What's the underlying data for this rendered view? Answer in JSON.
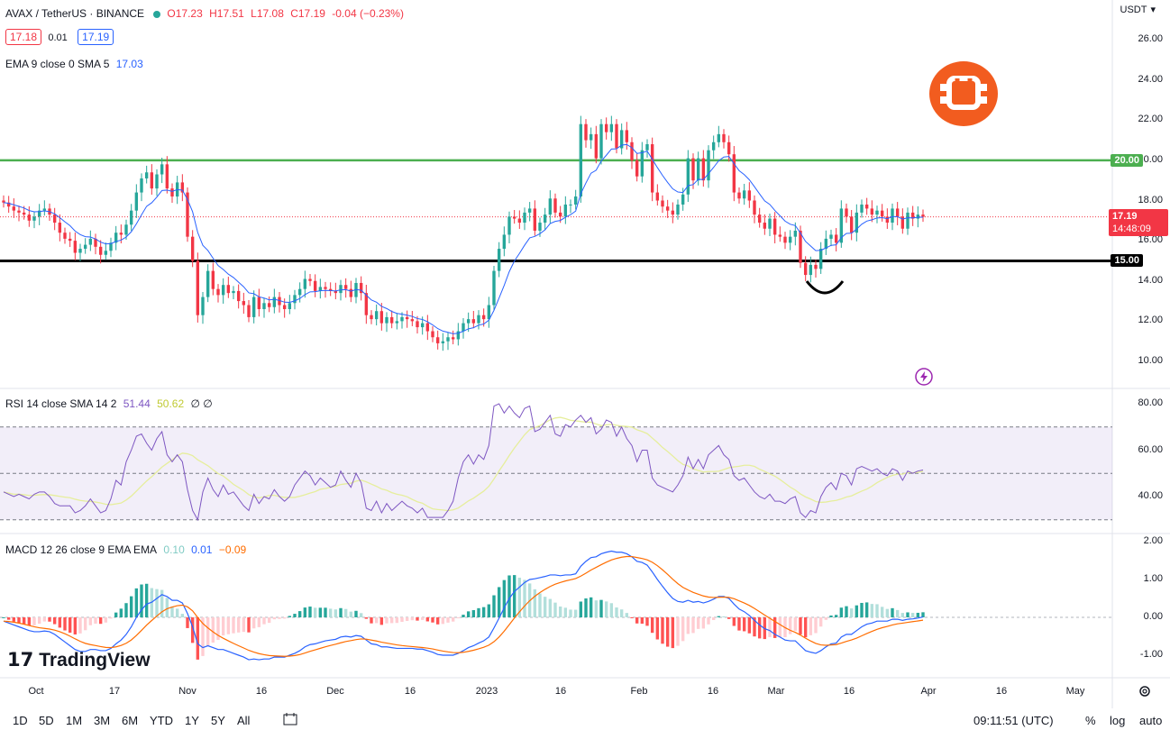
{
  "header": {
    "symbol": "AVAX / TetherUS · BINANCE",
    "open": "O17.23",
    "high": "H17.51",
    "low": "L17.08",
    "close": "C17.19",
    "change": "-0.04 (−0.23%)",
    "bid": "17.18",
    "spread": "0.01",
    "ask": "17.19",
    "ema_label": "EMA 9 close 0 SMA 5",
    "ema_value": "17.03",
    "currency": "USDT",
    "currency_arrow": "▾"
  },
  "rsi_header": {
    "label": "RSI 14 close SMA 14 2",
    "v1": "51.44",
    "v2": "50.62",
    "v3": "∅ ∅"
  },
  "macd_header": {
    "label": "MACD 12 26 close 9 EMA EMA",
    "v1": "0.10",
    "v2": "0.01",
    "v3": "−0.09"
  },
  "price_axis": [
    "26.00",
    "24.00",
    "22.00",
    "20.00",
    "18.00",
    "16.00",
    "14.00",
    "12.00",
    "10.00"
  ],
  "rsi_axis": [
    "80.00",
    "60.00",
    "40.00"
  ],
  "macd_axis": [
    "2.00",
    "1.00",
    "0.00",
    "-1.00"
  ],
  "levels": {
    "resistance": "20.00",
    "support": "15.00"
  },
  "last_price": {
    "price": "17.19",
    "countdown": "14:48:09"
  },
  "x_axis": [
    "Oct",
    "17",
    "Nov",
    "16",
    "Dec",
    "16",
    "2023",
    "16",
    "Feb",
    "16",
    "Mar",
    "16",
    "Apr",
    "16",
    "May"
  ],
  "bottom": {
    "timeframes": [
      "1D",
      "5D",
      "1M",
      "3M",
      "6M",
      "YTD",
      "1Y",
      "5Y",
      "All"
    ],
    "clock": "09:11:51 (UTC)",
    "percent": "%",
    "log": "log",
    "auto": "auto"
  },
  "brand": "TradingView",
  "colors": {
    "up": "#26a69a",
    "down": "#f23645",
    "resistance": "#4caf50",
    "support": "#000000",
    "ema": "#2962ff",
    "rsi": "#7e57c2",
    "rsi_sma": "#e6ee9c",
    "macd": "#2962ff",
    "signal": "#ff6d00"
  },
  "chart_data": {
    "type": "candlestick",
    "title": "AVAX / TetherUS · BINANCE",
    "ylim": [
      9.5,
      27
    ],
    "close": [
      17.9,
      17.7,
      17.5,
      17.4,
      17.3,
      17.0,
      17.2,
      17.5,
      17.6,
      17.3,
      16.9,
      16.4,
      16.1,
      16.0,
      15.4,
      15.6,
      15.8,
      16.1,
      15.7,
      15.3,
      15.5,
      15.9,
      16.4,
      16.3,
      16.8,
      17.5,
      18.4,
      19.1,
      19.4,
      18.6,
      19.3,
      19.8,
      18.6,
      18.2,
      18.9,
      18.4,
      16.2,
      15.0,
      12.3,
      13.2,
      14.5,
      13.6,
      13.3,
      13.8,
      13.4,
      13.5,
      13.0,
      12.8,
      12.2,
      13.2,
      12.6,
      12.9,
      12.7,
      13.2,
      12.8,
      12.6,
      12.9,
      13.3,
      13.6,
      14.1,
      14.0,
      13.5,
      13.7,
      13.6,
      13.5,
      13.4,
      13.8,
      13.6,
      13.2,
      13.9,
      13.4,
      12.3,
      12.1,
      12.5,
      11.9,
      12.2,
      11.9,
      12.0,
      12.2,
      12.1,
      12.0,
      11.7,
      11.9,
      11.5,
      11.2,
      10.9,
      11.0,
      11.2,
      11.1,
      11.5,
      11.9,
      12.1,
      11.9,
      12.3,
      12.1,
      12.8,
      14.5,
      15.6,
      16.3,
      17.2,
      17.1,
      16.9,
      17.4,
      17.6,
      16.5,
      16.9,
      17.3,
      18.1,
      17.4,
      17.2,
      17.8,
      17.8,
      18.2,
      21.8,
      21.0,
      21.3,
      20.1,
      21.8,
      21.4,
      21.8,
      20.6,
      21.5,
      20.9,
      20.0,
      19.2,
      20.5,
      20.8,
      18.4,
      18.0,
      17.7,
      17.5,
      17.3,
      17.8,
      18.3,
      20.1,
      19.0,
      20.1,
      19.0,
      20.5,
      20.9,
      21.3,
      20.9,
      20.3,
      18.4,
      18.1,
      18.5,
      18.0,
      17.3,
      16.9,
      16.6,
      17.1,
      16.3,
      16.2,
      15.9,
      16.2,
      16.5,
      14.9,
      14.3,
      14.8,
      14.6,
      15.6,
      16.1,
      16.3,
      15.9,
      17.6,
      17.2,
      16.4,
      17.4,
      17.8,
      17.6,
      17.3,
      17.5,
      17.2,
      16.9,
      17.6,
      17.2,
      16.6,
      17.4,
      17.1,
      17.3,
      17.19
    ],
    "rsi": [
      42,
      41,
      40,
      41,
      40,
      39,
      41,
      42,
      42,
      40,
      37,
      36,
      36,
      36,
      33,
      34,
      36,
      39,
      36,
      33,
      34,
      39,
      47,
      45,
      55,
      60,
      66,
      67,
      63,
      60,
      65,
      68,
      58,
      55,
      58,
      55,
      43,
      34,
      30,
      42,
      48,
      43,
      40,
      45,
      41,
      42,
      39,
      36,
      34,
      41,
      37,
      40,
      39,
      43,
      40,
      38,
      40,
      45,
      48,
      51,
      49,
      45,
      48,
      46,
      44,
      45,
      51,
      47,
      44,
      50,
      46,
      35,
      34,
      38,
      33,
      37,
      34,
      36,
      38,
      36,
      35,
      33,
      35,
      31,
      31,
      31,
      31,
      34,
      38,
      48,
      55,
      58,
      54,
      58,
      56,
      62,
      79,
      80,
      76,
      79,
      76,
      74,
      78,
      79,
      68,
      69,
      72,
      75,
      67,
      66,
      71,
      70,
      73,
      75,
      72,
      74,
      67,
      69,
      73,
      72,
      66,
      70,
      65,
      62,
      55,
      60,
      60,
      48,
      45,
      44,
      43,
      42,
      45,
      49,
      57,
      52,
      56,
      52,
      58,
      60,
      62,
      58,
      56,
      49,
      47,
      48,
      45,
      42,
      40,
      39,
      41,
      38,
      38,
      37,
      39,
      40,
      33,
      31,
      34,
      33,
      40,
      44,
      46,
      43,
      50,
      49,
      45,
      52,
      53,
      52,
      51,
      52,
      50,
      49,
      52,
      51,
      47,
      51,
      50,
      51,
      51.44
    ],
    "macd": [
      -0.1,
      -0.15,
      -0.2,
      -0.25,
      -0.3,
      -0.35,
      -0.38,
      -0.38,
      -0.36,
      -0.38,
      -0.45,
      -0.55,
      -0.65,
      -0.75,
      -0.85,
      -0.9,
      -0.9,
      -0.85,
      -0.85,
      -0.88,
      -0.88,
      -0.82,
      -0.7,
      -0.6,
      -0.45,
      -0.25,
      0.0,
      0.2,
      0.35,
      0.4,
      0.5,
      0.6,
      0.55,
      0.45,
      0.45,
      0.38,
      0.1,
      -0.25,
      -0.7,
      -0.8,
      -0.75,
      -0.8,
      -0.85,
      -0.85,
      -0.9,
      -0.95,
      -1.0,
      -1.05,
      -1.12,
      -1.1,
      -1.12,
      -1.1,
      -1.1,
      -1.05,
      -1.05,
      -1.05,
      -1.0,
      -0.95,
      -0.88,
      -0.78,
      -0.72,
      -0.7,
      -0.66,
      -0.62,
      -0.6,
      -0.58,
      -0.52,
      -0.5,
      -0.52,
      -0.48,
      -0.5,
      -0.6,
      -0.7,
      -0.72,
      -0.78,
      -0.78,
      -0.8,
      -0.82,
      -0.82,
      -0.82,
      -0.82,
      -0.84,
      -0.84,
      -0.88,
      -0.92,
      -0.98,
      -1.0,
      -1.0,
      -1.0,
      -0.95,
      -0.88,
      -0.8,
      -0.75,
      -0.68,
      -0.62,
      -0.52,
      -0.28,
      -0.02,
      0.25,
      0.5,
      0.68,
      0.8,
      0.92,
      1.0,
      1.02,
      1.05,
      1.08,
      1.12,
      1.12,
      1.1,
      1.12,
      1.12,
      1.15,
      1.35,
      1.48,
      1.58,
      1.6,
      1.68,
      1.72,
      1.75,
      1.72,
      1.72,
      1.68,
      1.6,
      1.48,
      1.45,
      1.38,
      1.2,
      1.0,
      0.82,
      0.65,
      0.5,
      0.42,
      0.4,
      0.45,
      0.4,
      0.42,
      0.38,
      0.42,
      0.48,
      0.55,
      0.55,
      0.5,
      0.35,
      0.22,
      0.15,
      0.05,
      -0.08,
      -0.2,
      -0.3,
      -0.35,
      -0.45,
      -0.52,
      -0.6,
      -0.62,
      -0.62,
      -0.75,
      -0.88,
      -0.92,
      -0.95,
      -0.88,
      -0.78,
      -0.7,
      -0.68,
      -0.52,
      -0.45,
      -0.45,
      -0.35,
      -0.25,
      -0.18,
      -0.15,
      -0.1,
      -0.1,
      -0.1,
      -0.05,
      -0.05,
      -0.08,
      -0.05,
      -0.04,
      -0.02,
      0.01
    ]
  }
}
